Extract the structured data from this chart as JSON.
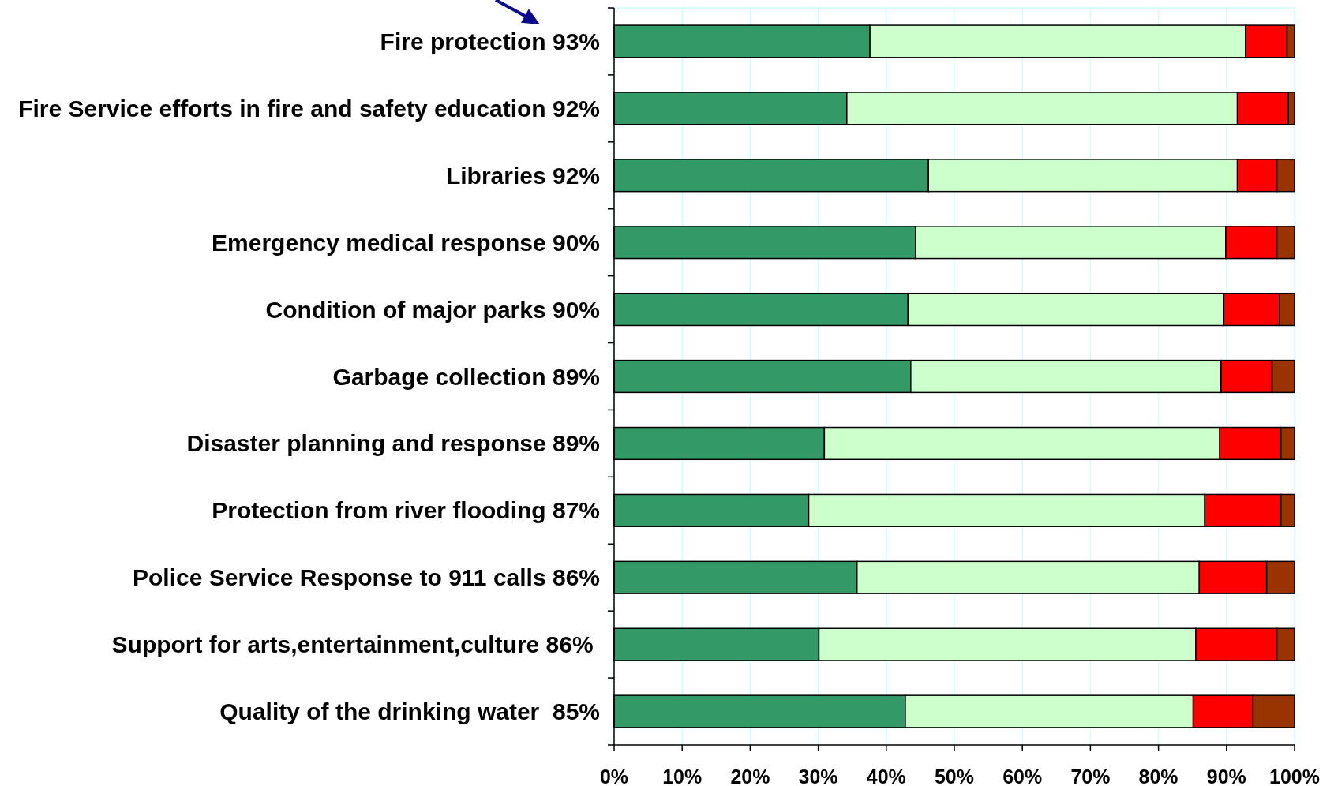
{
  "chart_data": {
    "type": "bar",
    "orientation": "horizontal",
    "stacked": true,
    "categories": [
      "Fire protection 93%",
      "Fire Service efforts in fire and safety education 92%",
      "Libraries 92%",
      "Emergency medical response 90%",
      "Condition of major parks 90%",
      "Garbage collection 89%",
      "Disaster planning and response 89%",
      "Protection from river flooding 87%",
      "Police Service Response to 911 calls 86%",
      "Support for arts,entertainment,culture 86% ",
      "Quality of the drinking water  85%"
    ],
    "series": [
      {
        "color": "#339966",
        "values": [
          37.6,
          34.2,
          46.2,
          44.3,
          43.2,
          43.6,
          30.9,
          28.6,
          35.7,
          30.1,
          42.8
        ]
      },
      {
        "color": "#ccffcc",
        "values": [
          55.2,
          57.4,
          45.4,
          45.6,
          46.4,
          45.6,
          58.1,
          58.2,
          50.3,
          55.4,
          42.3
        ]
      },
      {
        "color": "#ff0000",
        "values": [
          6.1,
          7.5,
          5.8,
          7.5,
          8.2,
          7.5,
          9.0,
          11.2,
          9.9,
          11.9,
          8.8
        ]
      },
      {
        "color": "#993300",
        "values": [
          1.1,
          0.9,
          2.6,
          2.6,
          2.2,
          3.3,
          2.0,
          2.0,
          4.1,
          2.6,
          6.1
        ]
      }
    ],
    "xlim": [
      0,
      100
    ],
    "xticks": [
      {
        "value": 0,
        "label": "0%"
      },
      {
        "value": 10,
        "label": "10%"
      },
      {
        "value": 20,
        "label": "20%"
      },
      {
        "value": 30,
        "label": "30%"
      },
      {
        "value": 40,
        "label": "40%"
      },
      {
        "value": 50,
        "label": "50%"
      },
      {
        "value": 60,
        "label": "60%"
      },
      {
        "value": 70,
        "label": "70%"
      },
      {
        "value": 80,
        "label": "80%"
      },
      {
        "value": 90,
        "label": "90%"
      },
      {
        "value": 100,
        "label": "100%"
      }
    ],
    "grid": "x"
  }
}
